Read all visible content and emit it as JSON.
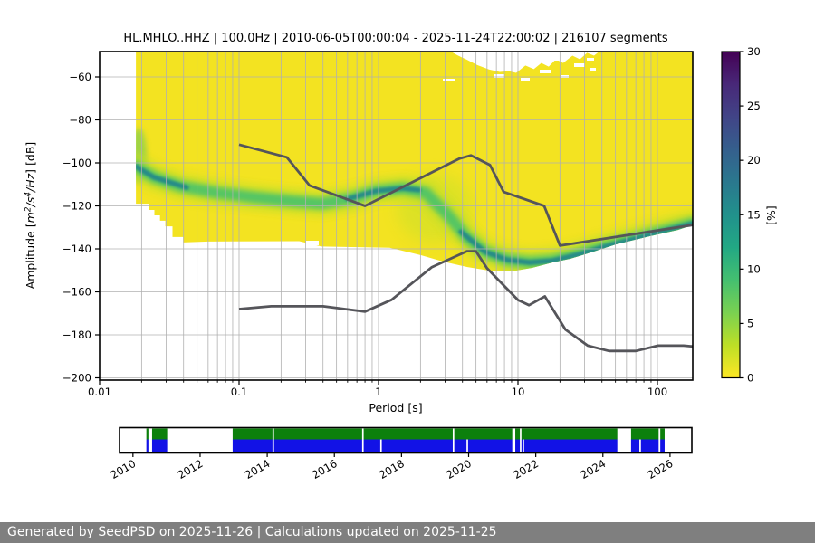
{
  "title": "HL.MHLO..HHZ | 100.0Hz | 2010-06-05T00:00:04 - 2025-11-24T22:00:02 | 216107 segments",
  "footer": {
    "text": "Generated by SeedPSD on 2025-11-26 | Calculations updated on 2025-11-25",
    "bg_color": "#7f7f7f",
    "text_color": "#ffffff"
  },
  "main_plot": {
    "xlabel": "Period [s]",
    "ylabel_segments": [
      {
        "text": "Amplitude [",
        "italic": false,
        "sup": false
      },
      {
        "text": "m",
        "italic": true,
        "sup": false
      },
      {
        "text": "2",
        "italic": true,
        "sup": true
      },
      {
        "text": "/",
        "italic": true,
        "sup": false
      },
      {
        "text": "s",
        "italic": true,
        "sup": false
      },
      {
        "text": "4",
        "italic": true,
        "sup": true
      },
      {
        "text": "/",
        "italic": true,
        "sup": false
      },
      {
        "text": "Hz",
        "italic": true,
        "sup": false
      },
      {
        "text": "] [dB]",
        "italic": false,
        "sup": false
      }
    ],
    "x_tick_values": [
      0.01,
      0.1,
      1,
      10,
      100
    ],
    "x_tick_labels": [
      "0.01",
      "0.1",
      "1",
      "10",
      "100"
    ],
    "y_tick_values": [
      -60,
      -80,
      -100,
      -120,
      -140,
      -160,
      -180,
      -200
    ],
    "y_tick_labels": [
      "−60",
      "−80",
      "−100",
      "−120",
      "−140",
      "−160",
      "−180",
      "−200"
    ]
  },
  "colorbar": {
    "label": "[%]",
    "tick_values": [
      0,
      5,
      10,
      15,
      20,
      25,
      30
    ],
    "tick_labels": [
      "0",
      "5",
      "10",
      "15",
      "20",
      "25",
      "30"
    ],
    "gradient_bottom_to_top": [
      [
        "0%",
        "#fde725"
      ],
      [
        "10%",
        "#bddf26"
      ],
      [
        "20%",
        "#7ad151"
      ],
      [
        "30%",
        "#44bf70"
      ],
      [
        "40%",
        "#22a884"
      ],
      [
        "50%",
        "#21918c"
      ],
      [
        "60%",
        "#2a788e"
      ],
      [
        "70%",
        "#355f8d"
      ],
      [
        "80%",
        "#414487"
      ],
      [
        "90%",
        "#482878"
      ],
      [
        "100%",
        "#440154"
      ]
    ]
  },
  "timeline": {
    "year_tick_values": [
      2010,
      2012,
      2014,
      2016,
      2018,
      2020,
      2022,
      2024,
      2026
    ],
    "year_tick_labels": [
      "2010",
      "2012",
      "2014",
      "2016",
      "2018",
      "2020",
      "2022",
      "2024",
      "2026"
    ],
    "xlim_years": [
      2009.6,
      2026.65
    ],
    "coverage_segments_years": [
      [
        2010.4,
        2010.46
      ],
      [
        2010.57,
        2011.02
      ],
      [
        2012.97,
        2021.3
      ],
      [
        2021.39,
        2024.43
      ],
      [
        2024.84,
        2025.66
      ],
      [
        2025.71,
        2025.84
      ]
    ],
    "full_gap_lines_years": [
      2014.18,
      2016.85,
      2019.55,
      2021.55
    ],
    "blue_only_gap_lines_years": [
      2017.39,
      2019.96,
      2021.63,
      2025.11
    ],
    "green_color": "#0c800c",
    "blue_color": "#1212e6"
  },
  "colors": {
    "heat_yellow": "#f3e321",
    "band_halo": "#c3df2c",
    "band_green": "#4fc468",
    "band_teal": "#24858c",
    "noise_model_gray": "#55555a",
    "grid": "#b0b0b0",
    "spine": "#000000"
  },
  "chart_data": {
    "type": "heatmap",
    "title": "HL.MHLO..HHZ | 100.0Hz | 2010-06-05T00:00:04 - 2025-11-24T22:00:02 | 216107 segments",
    "xlabel": "Period [s]",
    "ylabel": "Amplitude [m^2/s^4/Hz] [dB]",
    "x_scale": "log",
    "xlim": [
      0.01,
      179
    ],
    "ylim": [
      -201,
      -48
    ],
    "grid": true,
    "colorbar": {
      "label": "[%]",
      "min": 0,
      "max": 30,
      "colormap": "viridis reversed (0%=yellow, 30%=dark purple)"
    },
    "psd_mode_ridge_period_db": [
      [
        0.0182,
        -101.7
      ],
      [
        0.0245,
        -106.7
      ],
      [
        0.038,
        -110.9
      ],
      [
        0.07,
        -113.9
      ],
      [
        0.127,
        -116.0
      ],
      [
        0.231,
        -117.7
      ],
      [
        0.39,
        -118.9
      ],
      [
        0.658,
        -116.4
      ],
      [
        0.956,
        -113.1
      ],
      [
        1.5,
        -111.8
      ],
      [
        2.18,
        -113.9
      ],
      [
        3.16,
        -124.4
      ],
      [
        4.27,
        -134.5
      ],
      [
        5.77,
        -141.3
      ],
      [
        8.36,
        -145.1
      ],
      [
        12.1,
        -146.3
      ],
      [
        17.7,
        -145.5
      ],
      [
        27.7,
        -142.5
      ],
      [
        43.3,
        -138.7
      ],
      [
        67.7,
        -135.4
      ],
      [
        105.9,
        -132.0
      ],
      [
        179,
        -128.2
      ]
    ],
    "dense_ridge_segments_period_db": [
      [
        [
          0.0182,
          -101.7
        ],
        [
          0.0245,
          -106.7
        ],
        [
          0.042,
          -111.5
        ]
      ],
      [
        [
          0.6,
          -116.8
        ],
        [
          0.956,
          -113.1
        ],
        [
          1.5,
          -111.8
        ],
        [
          1.95,
          -112.6
        ]
      ],
      [
        [
          3.9,
          -132.0
        ],
        [
          5.77,
          -141.3
        ],
        [
          8.36,
          -145.1
        ],
        [
          12.1,
          -146.3
        ],
        [
          17.7,
          -145.5
        ],
        [
          27.7,
          -142.5
        ],
        [
          43.3,
          -138.7
        ],
        [
          67.7,
          -135.4
        ],
        [
          105.9,
          -132.0
        ],
        [
          179,
          -128.2
        ]
      ]
    ],
    "data_extent_polygon_period_db": [
      [
        0.0182,
        -48
      ],
      [
        3.26,
        -48
      ],
      [
        3.7,
        -50
      ],
      [
        4.3,
        -52
      ],
      [
        5.1,
        -54.5
      ],
      [
        6.2,
        -56.5
      ],
      [
        7.4,
        -57.7
      ],
      [
        8.6,
        -57.3
      ],
      [
        9.7,
        -58.1
      ],
      [
        11.3,
        -54.7
      ],
      [
        13,
        -56.4
      ],
      [
        14.7,
        -53.5
      ],
      [
        16.6,
        -55.2
      ],
      [
        18.7,
        -51.8
      ],
      [
        21.1,
        -53.5
      ],
      [
        24.6,
        -50.1
      ],
      [
        27.8,
        -51.8
      ],
      [
        31.3,
        -48.8
      ],
      [
        35.1,
        -50.1
      ],
      [
        38.5,
        -48
      ],
      [
        179,
        -48
      ],
      [
        179,
        -128.9
      ],
      [
        140,
        -131.2
      ],
      [
        88,
        -134.1
      ],
      [
        50.4,
        -137.9
      ],
      [
        34.7,
        -141.3
      ],
      [
        23.8,
        -144.6
      ],
      [
        17.7,
        -146.3
      ],
      [
        12.7,
        -148.8
      ],
      [
        9.0,
        -150.5
      ],
      [
        6.2,
        -150.1
      ],
      [
        4.3,
        -148.4
      ],
      [
        2.9,
        -145.9
      ],
      [
        2.0,
        -142.9
      ],
      [
        1.39,
        -140.4
      ],
      [
        1.2,
        -139.5
      ],
      [
        0.39,
        -138.9
      ],
      [
        0.27,
        -136.4
      ],
      [
        0.06,
        -136.6
      ],
      [
        0.0397,
        -137
      ],
      [
        0.0397,
        -134.5
      ],
      [
        0.0333,
        -134.5
      ],
      [
        0.0333,
        -129.5
      ],
      [
        0.0296,
        -129.5
      ],
      [
        0.0296,
        -126.9
      ],
      [
        0.0271,
        -126.9
      ],
      [
        0.0271,
        -124.4
      ],
      [
        0.0247,
        -124.4
      ],
      [
        0.0247,
        -121.9
      ],
      [
        0.0225,
        -121.9
      ],
      [
        0.0225,
        -119
      ],
      [
        0.0182,
        -119
      ]
    ],
    "noise_models": {
      "nhnm_period_db": [
        [
          0.1,
          -91.5
        ],
        [
          0.22,
          -97.4
        ],
        [
          0.32,
          -110.5
        ],
        [
          0.8,
          -120.0
        ],
        [
          3.8,
          -98.0
        ],
        [
          4.6,
          -96.5
        ],
        [
          6.3,
          -101.0
        ],
        [
          7.9,
          -113.5
        ],
        [
          15.4,
          -120.0
        ],
        [
          20.0,
          -138.5
        ],
        [
          179,
          -128.9
        ]
      ],
      "nlnm_period_db": [
        [
          0.1,
          -168.0
        ],
        [
          0.17,
          -166.7
        ],
        [
          0.4,
          -166.7
        ],
        [
          0.8,
          -169.2
        ],
        [
          1.24,
          -163.7
        ],
        [
          2.4,
          -148.6
        ],
        [
          4.3,
          -141.1
        ],
        [
          5.0,
          -141.1
        ],
        [
          6.0,
          -149.0
        ],
        [
          10.0,
          -163.8
        ],
        [
          12.0,
          -166.2
        ],
        [
          15.6,
          -162.1
        ],
        [
          21.9,
          -177.5
        ],
        [
          31.6,
          -185.0
        ],
        [
          45.0,
          -187.5
        ],
        [
          70.0,
          -187.5
        ],
        [
          101.0,
          -185.0
        ],
        [
          154.0,
          -185.0
        ],
        [
          179,
          -185.4
        ]
      ]
    }
  }
}
